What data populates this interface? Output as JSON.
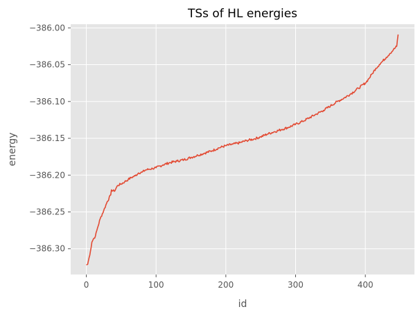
{
  "chart_data": {
    "type": "line",
    "title": "TSs of HL energies",
    "xlabel": "id",
    "ylabel": "energy",
    "xlim": [
      -22.4,
      470.4
    ],
    "ylim": [
      -386.335,
      -385.995
    ],
    "x_ticks": [
      0,
      100,
      200,
      300,
      400
    ],
    "x_tick_labels": [
      "0",
      "100",
      "200",
      "300",
      "400"
    ],
    "y_ticks": [
      -386.3,
      -386.25,
      -386.2,
      -386.15,
      -386.1,
      -386.05,
      -386.0
    ],
    "y_tick_labels": [
      "−386.30",
      "−386.25",
      "−386.20",
      "−386.15",
      "−386.10",
      "−386.05",
      "−386.00"
    ],
    "grid": true,
    "colors": {
      "series": "#E24A33",
      "plot_bg": "#E5E5E5",
      "grid": "#FFFFFF",
      "text": "#555555"
    },
    "series": [
      {
        "x": [
          0,
          2,
          4,
          6,
          8,
          10,
          13,
          16,
          20,
          25,
          30,
          35,
          36,
          40,
          45,
          50,
          55,
          60,
          65,
          70,
          75,
          80,
          85,
          90,
          95,
          100,
          110,
          120,
          130,
          140,
          150,
          160,
          170,
          180,
          190,
          200,
          210,
          220,
          230,
          240,
          250,
          260,
          270,
          280,
          290,
          300,
          310,
          320,
          330,
          340,
          350,
          360,
          370,
          380,
          390,
          400,
          405,
          410,
          415,
          420,
          425,
          430,
          435,
          440,
          445,
          447
        ],
        "y": [
          -386.322,
          -386.321,
          -386.312,
          -386.303,
          -386.291,
          -386.287,
          -386.283,
          -386.272,
          -386.259,
          -386.248,
          -386.236,
          -386.227,
          -386.22,
          -386.222,
          -386.214,
          -386.212,
          -386.209,
          -386.206,
          -386.203,
          -386.201,
          -386.197,
          -386.196,
          -386.193,
          -386.192,
          -386.191,
          -386.19,
          -386.186,
          -386.183,
          -386.181,
          -386.179,
          -386.176,
          -386.173,
          -386.17,
          -386.167,
          -386.163,
          -386.16,
          -386.158,
          -386.156,
          -386.153,
          -386.151,
          -386.148,
          -386.144,
          -386.141,
          -386.138,
          -386.135,
          -386.131,
          -386.127,
          -386.122,
          -386.117,
          -386.112,
          -386.106,
          -386.1,
          -386.095,
          -386.089,
          -386.082,
          -386.075,
          -386.069,
          -386.062,
          -386.055,
          -386.05,
          -386.045,
          -386.04,
          -386.035,
          -386.03,
          -386.025,
          -386.009
        ]
      }
    ]
  }
}
